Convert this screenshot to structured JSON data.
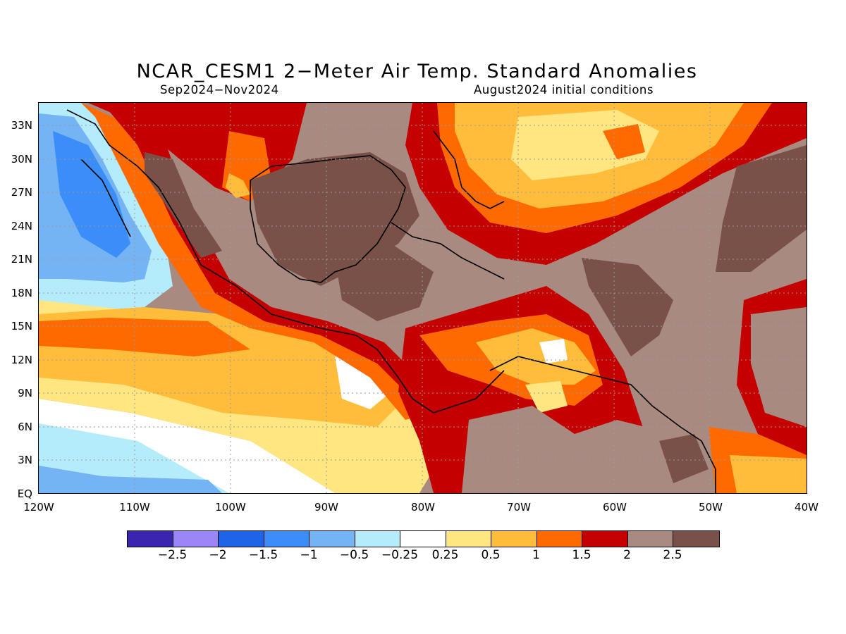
{
  "title": "NCAR_CESM1 2−Meter Air Temp. Standard Anomalies",
  "season": "Sep2024−Nov2024",
  "initial_conditions": "August2024 initial conditions",
  "map": {
    "lon_range": [
      -120,
      -40
    ],
    "lat_range": [
      0,
      35
    ],
    "lat_labels": [
      "33N",
      "30N",
      "27N",
      "24N",
      "21N",
      "18N",
      "15N",
      "12N",
      "9N",
      "6N",
      "3N",
      "EQ"
    ],
    "lon_labels": [
      "120W",
      "110W",
      "100W",
      "90W",
      "80W",
      "70W",
      "60W",
      "50W",
      "40W"
    ],
    "grid": "dotted"
  },
  "colorbar": {
    "colors": [
      "#3b24b0",
      "#9c85f7",
      "#1f63e6",
      "#3b8ef7",
      "#74b4f5",
      "#b5ecfb",
      "#ffffff",
      "#ffe680",
      "#ffbd3b",
      "#ff6a00",
      "#c40000",
      "#a98a80",
      "#7a5148"
    ],
    "labels": [
      "−2.5",
      "−2",
      "−1.5",
      "−1",
      "−0.5",
      "−0.25",
      "0.25",
      "0.5",
      "1",
      "1.5",
      "2",
      "2.5"
    ]
  }
}
